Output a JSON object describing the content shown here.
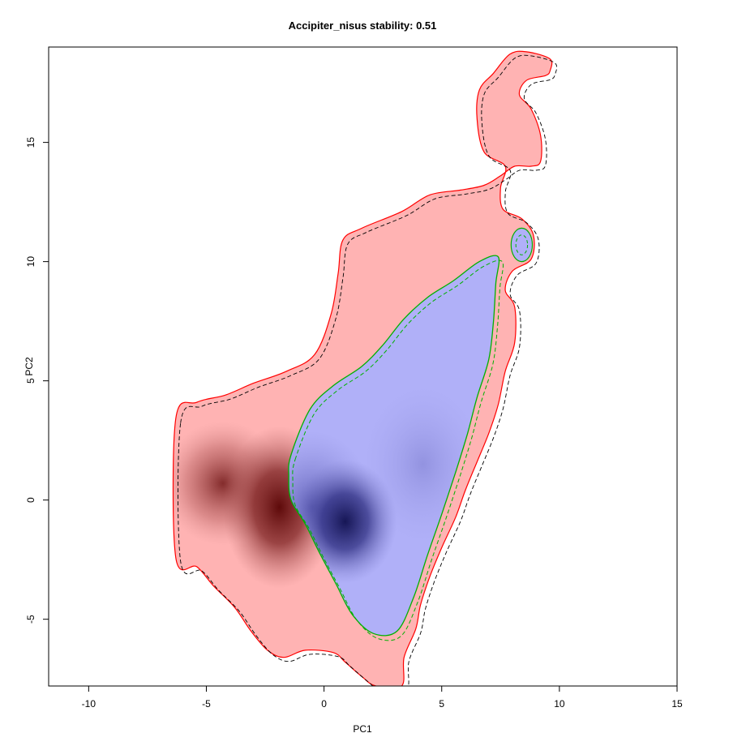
{
  "chart_data": {
    "type": "heatmap",
    "title": "Accipiter_nisus stability: 0.51",
    "xlabel": "PC1",
    "ylabel": "PC2",
    "xlim": [
      -11.7,
      15
    ],
    "ylim": [
      -7.8,
      19
    ],
    "x_ticks": [
      -10,
      -5,
      0,
      5,
      10,
      15
    ],
    "y_ticks": [
      -5,
      0,
      5,
      10,
      15
    ],
    "grid": false,
    "legend": "none",
    "colors": {
      "native_range_fill": "#ffb3b3",
      "native_density_peak": "#6b0e0e",
      "invaded_range_fill": "#b0b0f8",
      "invaded_density_peak": "#1c1c66",
      "native_contour": "#ff0000",
      "invaded_contour": "#00b000",
      "dashed_contour": "#000000"
    },
    "regions": [
      {
        "name": "native-range-envelope",
        "color": "#ffb3b3",
        "outline": [
          [
            -6.3,
            3.4
          ],
          [
            -5.4,
            4.1
          ],
          [
            -4.2,
            4.4
          ],
          [
            -3,
            4.9
          ],
          [
            -1.6,
            5.4
          ],
          [
            -0.4,
            6.1
          ],
          [
            0.3,
            7.8
          ],
          [
            0.6,
            9.5
          ],
          [
            0.8,
            10.9
          ],
          [
            1.6,
            11.4
          ],
          [
            3.3,
            12.1
          ],
          [
            4.5,
            12.8
          ],
          [
            5.8,
            13.0
          ],
          [
            6.8,
            13.2
          ],
          [
            7.5,
            13.6
          ],
          [
            8.1,
            14.0
          ],
          [
            8.8,
            14.0
          ],
          [
            9.2,
            14.2
          ],
          [
            9.2,
            15.3
          ],
          [
            8.8,
            16.4
          ],
          [
            8.3,
            17.0
          ],
          [
            8.6,
            17.6
          ],
          [
            9.4,
            17.8
          ],
          [
            9.6,
            18.0
          ],
          [
            9.6,
            18.5
          ],
          [
            8.6,
            18.8
          ],
          [
            7.9,
            18.7
          ],
          [
            7.2,
            17.9
          ],
          [
            6.6,
            17.2
          ],
          [
            6.5,
            16.0
          ],
          [
            6.8,
            14.6
          ],
          [
            7.7,
            14.0
          ],
          [
            7.5,
            13.1
          ],
          [
            7.6,
            12.2
          ],
          [
            8.4,
            11.8
          ],
          [
            8.9,
            11.1
          ],
          [
            8.8,
            10.1
          ],
          [
            8.0,
            9.6
          ],
          [
            7.7,
            8.8
          ],
          [
            8.1,
            8.1
          ],
          [
            8.1,
            6.6
          ],
          [
            7.7,
            5.4
          ],
          [
            7.4,
            4.0
          ],
          [
            7.0,
            2.8
          ],
          [
            6.5,
            1.6
          ],
          [
            6.0,
            0.4
          ],
          [
            5.6,
            -0.7
          ],
          [
            5.0,
            -2.0
          ],
          [
            4.5,
            -3.2
          ],
          [
            4.1,
            -4.4
          ],
          [
            3.9,
            -5.4
          ],
          [
            3.4,
            -6.6
          ],
          [
            3.3,
            -7.8
          ],
          [
            2.2,
            -7.8
          ],
          [
            1.6,
            -7.4
          ],
          [
            0.9,
            -6.8
          ],
          [
            0.4,
            -6.4
          ],
          [
            -0.8,
            -6.3
          ],
          [
            -1.7,
            -6.6
          ],
          [
            -2.4,
            -6.3
          ],
          [
            -3.1,
            -5.5
          ],
          [
            -3.8,
            -4.5
          ],
          [
            -4.7,
            -3.6
          ],
          [
            -5.4,
            -2.8
          ],
          [
            -6.3,
            -2.4
          ]
        ]
      },
      {
        "name": "invaded-range-envelope",
        "color": "#b0b0f8",
        "outline": [
          [
            -1.4,
            1.9
          ],
          [
            -0.6,
            3.8
          ],
          [
            0.4,
            4.8
          ],
          [
            1.6,
            5.6
          ],
          [
            2.5,
            6.5
          ],
          [
            3.4,
            7.6
          ],
          [
            4.4,
            8.5
          ],
          [
            5.5,
            9.2
          ],
          [
            6.6,
            10.0
          ],
          [
            7.4,
            10.2
          ],
          [
            7.3,
            9.1
          ],
          [
            7.2,
            7.5
          ],
          [
            7.0,
            5.9
          ],
          [
            6.5,
            4.3
          ],
          [
            6.1,
            2.8
          ],
          [
            5.6,
            1.2
          ],
          [
            5.0,
            -0.6
          ],
          [
            4.4,
            -2.3
          ],
          [
            3.8,
            -4.1
          ],
          [
            3.1,
            -5.5
          ],
          [
            2.1,
            -5.6
          ],
          [
            1.2,
            -4.8
          ],
          [
            0.5,
            -3.5
          ],
          [
            -0.2,
            -2.2
          ],
          [
            -0.8,
            -1.0
          ],
          [
            -1.4,
            0.0
          ],
          [
            -1.5,
            1.0
          ]
        ]
      }
    ],
    "density_peaks": [
      {
        "name": "native-peak",
        "x": -1.9,
        "y": -0.3,
        "value": 1.0
      },
      {
        "name": "native-secondary",
        "x": -4.3,
        "y": 0.7,
        "value": 0.7
      },
      {
        "name": "invaded-peak",
        "x": 0.9,
        "y": -0.9,
        "value": 1.0
      },
      {
        "name": "invaded-secondary",
        "x": -0.5,
        "y": -0.3,
        "value": 0.8
      }
    ],
    "small_patch": {
      "name": "invaded-small-patch",
      "x": 8.4,
      "y": 10.7,
      "rx": 0.45,
      "ry": 0.7
    }
  }
}
